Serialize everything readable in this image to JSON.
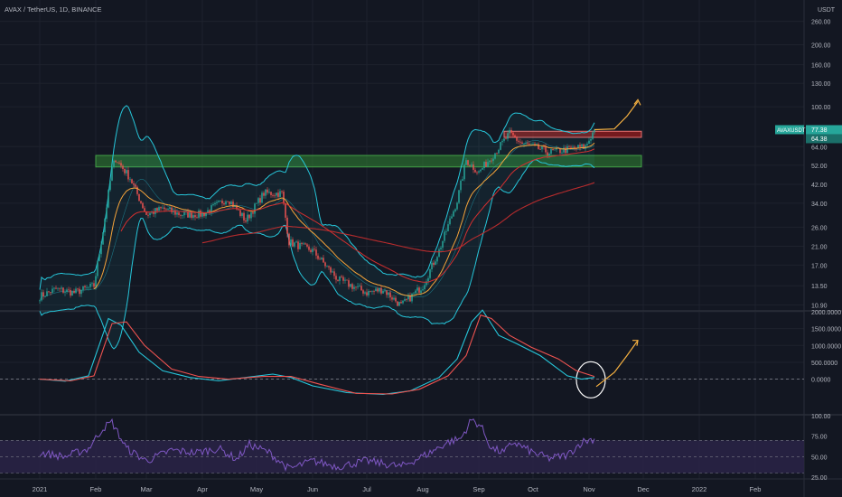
{
  "header": {
    "title": "AVAX / TetherUS, 1D, BINANCE"
  },
  "colors": {
    "background": "#131722",
    "grid": "#1e222d",
    "candle_up": "#26a69a",
    "candle_down": "#ef5350",
    "band": "#26c6da",
    "ema_short": "#f6a43a",
    "ema_long": "#d32f2f",
    "support_zone": "#2e7d32",
    "resistance_zone": "#b71c1c",
    "indicator_fast": "#26c6da",
    "indicator_slow": "#ef5350",
    "rsi_line": "#7e57c2",
    "rsi_band": "#2a2347",
    "annotation": "#f5b041",
    "circle": "#ffffff"
  },
  "chart_data": [
    {
      "type": "candlestick",
      "title": "AVAX / TetherUS, 1D, BINANCE",
      "yscale": "log",
      "unit_label": "USDT",
      "ylim": [
        10.3,
        330
      ],
      "yticks": [
        "260.00",
        "200.00",
        "160.00",
        "130.00",
        "100.00",
        "64.00",
        "52.00",
        "42.00",
        "34.00",
        "26.00",
        "21.00",
        "17.00",
        "13.50",
        "10.90"
      ],
      "ytick_values": [
        260,
        200,
        160,
        130,
        100,
        64,
        52,
        42,
        34,
        26,
        21,
        17,
        13.5,
        10.9
      ],
      "x_axis_labels": [
        "2021",
        "Feb",
        "Mar",
        "Apr",
        "May",
        "Jun",
        "Jul",
        "Aug",
        "Sep",
        "Oct",
        "Nov",
        "Dec",
        "2022",
        "Feb"
      ],
      "price_tags": [
        {
          "label": "AVAXUSDT",
          "value": "77.38"
        },
        {
          "value": "64.38"
        }
      ],
      "price_path": [
        [
          "2021-01-01",
          12.0
        ],
        [
          "2021-01-10",
          13.0
        ],
        [
          "2021-01-20",
          12.5
        ],
        [
          "2021-01-31",
          13.5
        ],
        [
          "2021-02-05",
          25.0
        ],
        [
          "2021-02-10",
          50.0
        ],
        [
          "2021-02-12",
          56.0
        ],
        [
          "2021-02-20",
          45.0
        ],
        [
          "2021-03-01",
          30.0
        ],
        [
          "2021-03-10",
          32.0
        ],
        [
          "2021-03-20",
          30.0
        ],
        [
          "2021-04-01",
          30.0
        ],
        [
          "2021-04-15",
          36.0
        ],
        [
          "2021-04-25",
          28.0
        ],
        [
          "2021-05-05",
          38.0
        ],
        [
          "2021-05-15",
          38.0
        ],
        [
          "2021-05-19",
          22.0
        ],
        [
          "2021-06-01",
          20.0
        ],
        [
          "2021-06-15",
          14.5
        ],
        [
          "2021-07-01",
          12.5
        ],
        [
          "2021-07-10",
          13.0
        ],
        [
          "2021-07-20",
          10.8
        ],
        [
          "2021-08-01",
          13.5
        ],
        [
          "2021-08-10",
          20.0
        ],
        [
          "2021-08-20",
          35.0
        ],
        [
          "2021-08-25",
          55.0
        ],
        [
          "2021-09-01",
          48.0
        ],
        [
          "2021-09-10",
          60.0
        ],
        [
          "2021-09-18",
          74.0
        ],
        [
          "2021-09-25",
          66.0
        ],
        [
          "2021-10-01",
          64.0
        ],
        [
          "2021-10-10",
          60.0
        ],
        [
          "2021-10-20",
          62.0
        ],
        [
          "2021-10-30",
          64.0
        ],
        [
          "2021-11-04",
          77.38
        ]
      ],
      "zones": [
        {
          "name": "support",
          "from": "2021-02-01",
          "to": "2021-11-30",
          "low": 51,
          "high": 58
        },
        {
          "name": "resistance",
          "from": "2021-09-15",
          "to": "2021-11-30",
          "low": 71,
          "high": 76
        }
      ],
      "projection": [
        [
          "2021-11-04",
          77.4
        ],
        [
          "2021-11-15",
          78
        ],
        [
          "2021-11-22",
          90
        ],
        [
          "2021-11-28",
          106
        ]
      ]
    },
    {
      "type": "line",
      "yticks": [
        "2000.0000",
        "1500.0000",
        "1000.0000",
        "500.0000",
        "0.0000"
      ],
      "ytick_values": [
        2000,
        1500,
        1000,
        500,
        0
      ],
      "ylim": [
        -1030,
        2000
      ],
      "series": [
        {
          "points": [
            [
              "2021-01-01",
              0
            ],
            [
              "2021-01-15",
              -60
            ],
            [
              "2021-01-28",
              100
            ],
            [
              "2021-02-08",
              1800
            ],
            [
              "2021-02-15",
              1600
            ],
            [
              "2021-02-25",
              800
            ],
            [
              "2021-03-10",
              250
            ],
            [
              "2021-03-25",
              50
            ],
            [
              "2021-04-10",
              -50
            ],
            [
              "2021-04-25",
              50
            ],
            [
              "2021-05-10",
              150
            ],
            [
              "2021-05-20",
              50
            ],
            [
              "2021-06-01",
              -200
            ],
            [
              "2021-06-20",
              -400
            ],
            [
              "2021-07-10",
              -450
            ],
            [
              "2021-07-25",
              -350
            ],
            [
              "2021-08-10",
              50
            ],
            [
              "2021-08-20",
              600
            ],
            [
              "2021-08-28",
              1700
            ],
            [
              "2021-09-03",
              2050
            ],
            [
              "2021-09-12",
              1300
            ],
            [
              "2021-09-22",
              1050
            ],
            [
              "2021-10-05",
              700
            ],
            [
              "2021-10-20",
              100
            ],
            [
              "2021-10-28",
              0
            ],
            [
              "2021-11-04",
              50
            ]
          ]
        },
        {
          "points": [
            [
              "2021-01-01",
              0
            ],
            [
              "2021-01-18",
              -50
            ],
            [
              "2021-01-31",
              100
            ],
            [
              "2021-02-10",
              1650
            ],
            [
              "2021-02-18",
              1700
            ],
            [
              "2021-02-28",
              1000
            ],
            [
              "2021-03-15",
              300
            ],
            [
              "2021-03-30",
              80
            ],
            [
              "2021-04-15",
              0
            ],
            [
              "2021-05-05",
              80
            ],
            [
              "2021-05-20",
              80
            ],
            [
              "2021-06-05",
              -150
            ],
            [
              "2021-06-25",
              -420
            ],
            [
              "2021-07-15",
              -440
            ],
            [
              "2021-07-30",
              -300
            ],
            [
              "2021-08-15",
              100
            ],
            [
              "2021-08-25",
              700
            ],
            [
              "2021-09-02",
              1900
            ],
            [
              "2021-09-08",
              1800
            ],
            [
              "2021-09-18",
              1300
            ],
            [
              "2021-09-30",
              950
            ],
            [
              "2021-10-15",
              600
            ],
            [
              "2021-10-25",
              250
            ],
            [
              "2021-11-04",
              80
            ]
          ]
        }
      ],
      "projection": [
        [
          "2021-11-05",
          -220
        ],
        [
          "2021-11-15",
          200
        ],
        [
          "2021-11-22",
          700
        ],
        [
          "2021-11-28",
          1150
        ]
      ]
    },
    {
      "type": "line",
      "yticks": [
        "100.00",
        "75.00",
        "50.00",
        "25.00"
      ],
      "ytick_values": [
        100,
        75,
        50,
        25
      ],
      "ylim": [
        23,
        100
      ],
      "band": [
        30,
        70
      ],
      "series": [
        {
          "points": [
            [
              "2021-01-01",
              55
            ],
            [
              "2021-01-15",
              50
            ],
            [
              "2021-01-28",
              60
            ],
            [
              "2021-02-05",
              85
            ],
            [
              "2021-02-10",
              92
            ],
            [
              "2021-02-18",
              60
            ],
            [
              "2021-03-01",
              45
            ],
            [
              "2021-03-15",
              58
            ],
            [
              "2021-03-28",
              55
            ],
            [
              "2021-04-10",
              60
            ],
            [
              "2021-04-20",
              47
            ],
            [
              "2021-04-27",
              65
            ],
            [
              "2021-05-08",
              55
            ],
            [
              "2021-05-19",
              35
            ],
            [
              "2021-06-01",
              45
            ],
            [
              "2021-06-15",
              38
            ],
            [
              "2021-07-01",
              45
            ],
            [
              "2021-07-20",
              38
            ],
            [
              "2021-08-05",
              55
            ],
            [
              "2021-08-15",
              68
            ],
            [
              "2021-08-22",
              72
            ],
            [
              "2021-08-28",
              95
            ],
            [
              "2021-09-02",
              88
            ],
            [
              "2021-09-08",
              60
            ],
            [
              "2021-09-15",
              55
            ],
            [
              "2021-09-20",
              68
            ],
            [
              "2021-10-01",
              55
            ],
            [
              "2021-10-10",
              48
            ],
            [
              "2021-10-20",
              52
            ],
            [
              "2021-10-28",
              68
            ],
            [
              "2021-11-04",
              72
            ]
          ]
        }
      ]
    }
  ]
}
